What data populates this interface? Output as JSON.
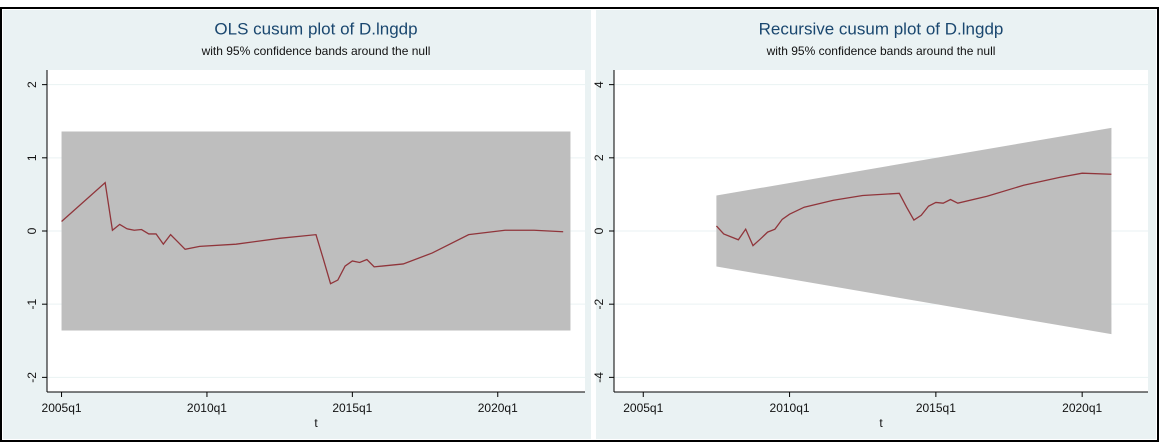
{
  "chart_data": [
    {
      "type": "line",
      "title": "OLS cusum plot of D.lngdp",
      "subtitle": "with 95% confidence bands around the null",
      "x_label": "t",
      "xlim": [
        "2004q3",
        "2023q1"
      ],
      "xticks": [
        "2005q1",
        "2010q1",
        "2015q1",
        "2020q1"
      ],
      "ylim": [
        -2.2,
        2.2
      ],
      "yticks": [
        -2,
        -1,
        0,
        1,
        2
      ],
      "grid": true,
      "band": {
        "color": "#bebebe",
        "x": [
          "2005q1",
          "2022q3"
        ],
        "upper": [
          1.36,
          1.36
        ],
        "lower": [
          -1.36,
          -1.36
        ]
      },
      "x": [
        "2005q1",
        "2006q3",
        "2006q4",
        "2007q1",
        "2007q2",
        "2007q3",
        "2007q4",
        "2008q1",
        "2008q2",
        "2008q3",
        "2008q4",
        "2009q1",
        "2009q2",
        "2009q4",
        "2011q1",
        "2012q3",
        "2013q2",
        "2013q4",
        "2014q1",
        "2014q2",
        "2014q3",
        "2014q4",
        "2015q1",
        "2015q2",
        "2015q3",
        "2015q4",
        "2016q4",
        "2017q4",
        "2019q1",
        "2020q2",
        "2021q2",
        "2022q2"
      ],
      "series": [
        {
          "name": "cusum",
          "color": "#90353b",
          "values": [
            0.13,
            0.66,
            0.01,
            0.09,
            0.03,
            0.01,
            0.02,
            -0.04,
            -0.04,
            -0.18,
            -0.05,
            -0.15,
            -0.25,
            -0.21,
            -0.18,
            -0.1,
            -0.07,
            -0.05,
            -0.38,
            -0.72,
            -0.67,
            -0.48,
            -0.41,
            -0.43,
            -0.39,
            -0.49,
            -0.45,
            -0.3,
            -0.05,
            0.01,
            0.01,
            -0.01
          ]
        }
      ]
    },
    {
      "type": "line",
      "title": "Recursive cusum plot of D.lngdp",
      "subtitle": "with 95% confidence bands around the null",
      "x_label": "t",
      "xlim": [
        "2004q1",
        "2022q2"
      ],
      "xticks": [
        "2005q1",
        "2010q1",
        "2015q1",
        "2020q1"
      ],
      "ylim": [
        -4.4,
        4.4
      ],
      "yticks": [
        -4,
        -2,
        0,
        2,
        4
      ],
      "grid": true,
      "band": {
        "color": "#bebebe",
        "x": [
          "2007q3",
          "2021q1"
        ],
        "upper": [
          0.97,
          2.82
        ],
        "lower": [
          -0.97,
          -2.82
        ]
      },
      "x": [
        "2007q3",
        "2007q4",
        "2008q1",
        "2008q2",
        "2008q3",
        "2008q4",
        "2009q1",
        "2009q2",
        "2009q3",
        "2009q4",
        "2010q1",
        "2010q3",
        "2011q3",
        "2012q3",
        "2013q4",
        "2014q1",
        "2014q2",
        "2014q3",
        "2014q4",
        "2015q1",
        "2015q2",
        "2015q3",
        "2015q4",
        "2016q4",
        "2018q1",
        "2019q2",
        "2020q1",
        "2021q1"
      ],
      "series": [
        {
          "name": "cusum",
          "color": "#90353b",
          "values": [
            0.14,
            -0.08,
            -0.16,
            -0.24,
            0.05,
            -0.4,
            -0.22,
            -0.03,
            0.05,
            0.32,
            0.46,
            0.65,
            0.84,
            0.97,
            1.03,
            0.65,
            0.3,
            0.43,
            0.68,
            0.78,
            0.76,
            0.86,
            0.76,
            0.95,
            1.25,
            1.47,
            1.58,
            1.55
          ]
        }
      ]
    }
  ]
}
